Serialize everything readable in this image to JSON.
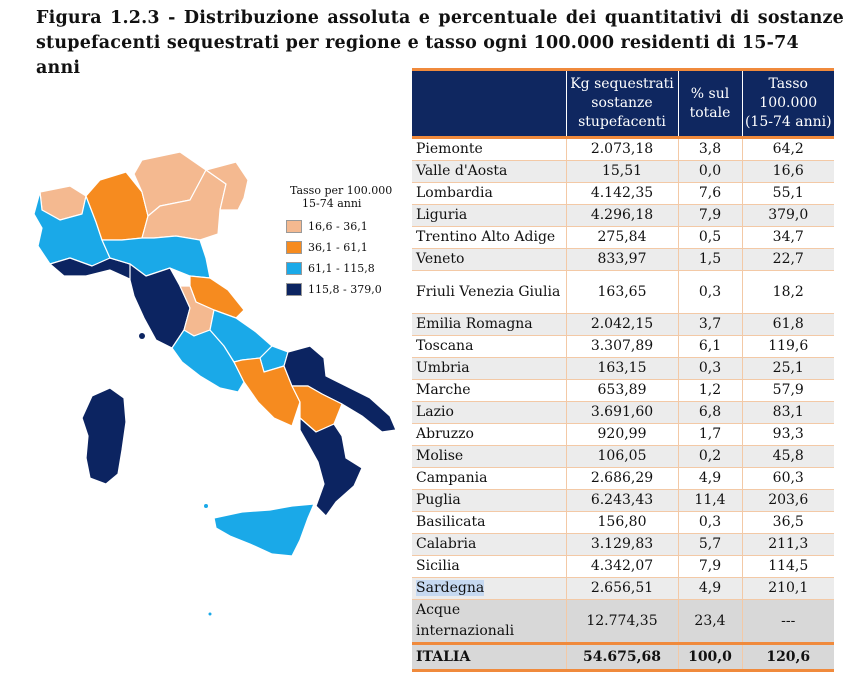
{
  "title": {
    "line1": "Figura 1.2.3 - Distribuzione assoluta e percentuale dei quantitativi di sostanze",
    "line2": "stupefacenti sequestrati per regione e tasso ogni 100.000 residenti di 15-74 anni"
  },
  "legend": {
    "title_line1": "Tasso per 100.000",
    "title_line2": "15-74 anni",
    "items": [
      {
        "label": "16,6 - 36,1",
        "color": "#f4b990"
      },
      {
        "label": "36,1 - 61,1",
        "color": "#f68b1f"
      },
      {
        "label": "61,1 - 115,8",
        "color": "#1aa9e8"
      },
      {
        "label": "115,8 - 379,0",
        "color": "#0c2461"
      }
    ]
  },
  "table": {
    "headers": {
      "region": "",
      "kg": "Kg sequestrati sostanze stupefacenti",
      "pct": "% sul totale",
      "rate": "Tasso 100.000 (15-74 anni)"
    },
    "rows": [
      {
        "region": "Piemonte",
        "kg": "2.073,18",
        "pct": "3,8",
        "rate": "64,2"
      },
      {
        "region": "Valle d'Aosta",
        "kg": "15,51",
        "pct": "0,0",
        "rate": "16,6"
      },
      {
        "region": "Lombardia",
        "kg": "4.142,35",
        "pct": "7,6",
        "rate": "55,1"
      },
      {
        "region": "Liguria",
        "kg": "4.296,18",
        "pct": "7,9",
        "rate": "379,0"
      },
      {
        "region": "Trentino Alto Adige",
        "kg": "275,84",
        "pct": "0,5",
        "rate": "34,7"
      },
      {
        "region": "Veneto",
        "kg": "833,97",
        "pct": "1,5",
        "rate": "22,7"
      },
      {
        "region": "Friuli Venezia Giulia",
        "kg": "163,65",
        "pct": "0,3",
        "rate": "18,2"
      },
      {
        "region": "Emilia Romagna",
        "kg": "2.042,15",
        "pct": "3,7",
        "rate": "61,8"
      },
      {
        "region": "Toscana",
        "kg": "3.307,89",
        "pct": "6,1",
        "rate": "119,6"
      },
      {
        "region": "Umbria",
        "kg": "163,15",
        "pct": "0,3",
        "rate": "25,1"
      },
      {
        "region": "Marche",
        "kg": "653,89",
        "pct": "1,2",
        "rate": "57,9"
      },
      {
        "region": "Lazio",
        "kg": "3.691,60",
        "pct": "6,8",
        "rate": "83,1"
      },
      {
        "region": "Abruzzo",
        "kg": "920,99",
        "pct": "1,7",
        "rate": "93,3"
      },
      {
        "region": "Molise",
        "kg": "106,05",
        "pct": "0,2",
        "rate": "45,8"
      },
      {
        "region": "Campania",
        "kg": "2.686,29",
        "pct": "4,9",
        "rate": "60,3"
      },
      {
        "region": "Puglia",
        "kg": "6.243,43",
        "pct": "11,4",
        "rate": "203,6"
      },
      {
        "region": "Basilicata",
        "kg": "156,80",
        "pct": "0,3",
        "rate": "36,5"
      },
      {
        "region": "Calabria",
        "kg": "3.129,83",
        "pct": "5,7",
        "rate": "211,3"
      },
      {
        "region": "Sicilia",
        "kg": "4.342,07",
        "pct": "7,9",
        "rate": "114,5"
      },
      {
        "region": "Sardegna",
        "kg": "2.656,51",
        "pct": "4,9",
        "rate": "210,1"
      }
    ],
    "acque": {
      "region": "Acque internazionali",
      "kg": "12.774,35",
      "pct": "23,4",
      "rate": "---"
    },
    "total": {
      "region": "ITALIA",
      "kg": "54.675,68",
      "pct": "100,0",
      "rate": "120,6"
    }
  }
}
